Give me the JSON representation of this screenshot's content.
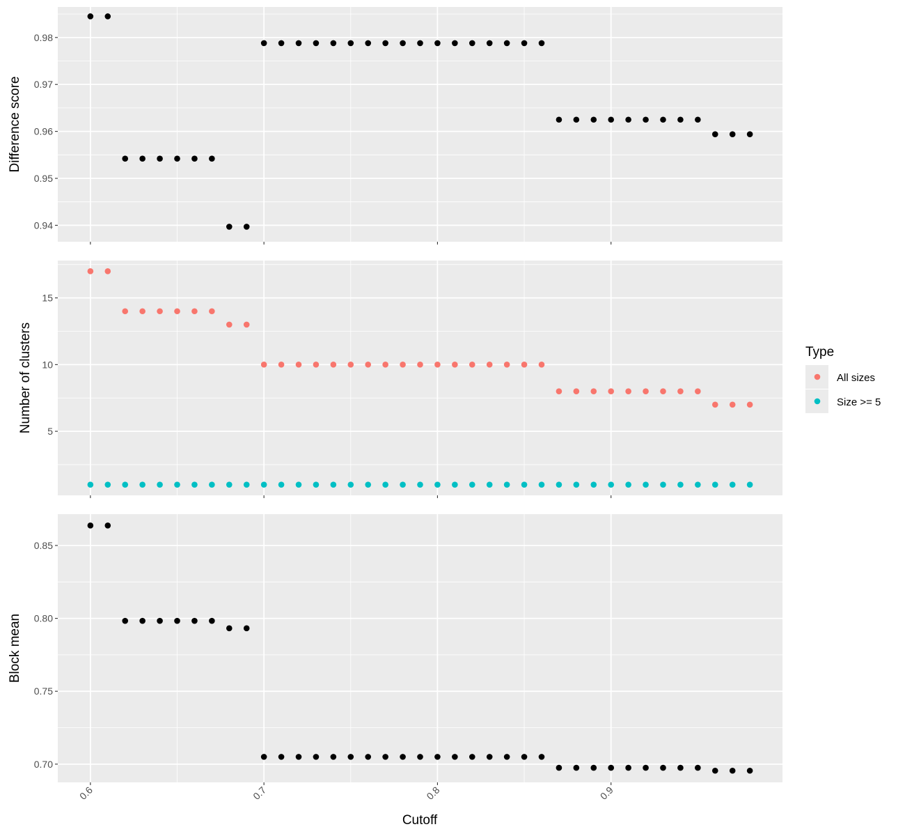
{
  "chart_data": [
    {
      "type": "scatter",
      "panel": "top",
      "ylabel": "Difference score",
      "xlim": [
        0.5812,
        0.9988
      ],
      "ylim": [
        0.9365,
        0.9865
      ],
      "grid": true,
      "x_ticks": [
        0.6,
        0.7,
        0.8,
        0.9
      ],
      "y_ticks": [
        0.94,
        0.95,
        0.96,
        0.97,
        0.98
      ],
      "y_tick_labels": [
        "0.94",
        "0.95",
        "0.96",
        "0.97",
        "0.98"
      ],
      "color": "#000000",
      "x": [
        0.6,
        0.61,
        0.62,
        0.63,
        0.64,
        0.65,
        0.66,
        0.67,
        0.68,
        0.69,
        0.7,
        0.71,
        0.72,
        0.73,
        0.74,
        0.75,
        0.76,
        0.77,
        0.78,
        0.79,
        0.8,
        0.81,
        0.82,
        0.83,
        0.84,
        0.85,
        0.86,
        0.87,
        0.88,
        0.89,
        0.9,
        0.91,
        0.92,
        0.93,
        0.94,
        0.95,
        0.96,
        0.97,
        0.98
      ],
      "y": [
        0.9845,
        0.9845,
        0.9542,
        0.9542,
        0.9542,
        0.9542,
        0.9542,
        0.9542,
        0.9397,
        0.9397,
        0.9788,
        0.9788,
        0.9788,
        0.9788,
        0.9788,
        0.9788,
        0.9788,
        0.9788,
        0.9788,
        0.9788,
        0.9788,
        0.9788,
        0.9788,
        0.9788,
        0.9788,
        0.9788,
        0.9788,
        0.9625,
        0.9625,
        0.9625,
        0.9625,
        0.9625,
        0.9625,
        0.9625,
        0.9625,
        0.9625,
        0.9594,
        0.9594,
        0.9594
      ]
    },
    {
      "type": "scatter",
      "panel": "middle",
      "ylabel": "Number of clusters",
      "xlim": [
        0.5812,
        0.9988
      ],
      "ylim": [
        0.2,
        17.8
      ],
      "grid": true,
      "x_ticks": [
        0.6,
        0.7,
        0.8,
        0.9
      ],
      "y_ticks": [
        5,
        10,
        15
      ],
      "y_tick_labels": [
        "5",
        "10",
        "15"
      ],
      "x": [
        0.6,
        0.61,
        0.62,
        0.63,
        0.64,
        0.65,
        0.66,
        0.67,
        0.68,
        0.69,
        0.7,
        0.71,
        0.72,
        0.73,
        0.74,
        0.75,
        0.76,
        0.77,
        0.78,
        0.79,
        0.8,
        0.81,
        0.82,
        0.83,
        0.84,
        0.85,
        0.86,
        0.87,
        0.88,
        0.89,
        0.9,
        0.91,
        0.92,
        0.93,
        0.94,
        0.95,
        0.96,
        0.97,
        0.98
      ],
      "series": [
        {
          "name": "All sizes",
          "color": "#F8766D",
          "values": [
            17,
            17,
            14,
            14,
            14,
            14,
            14,
            14,
            13,
            13,
            10,
            10,
            10,
            10,
            10,
            10,
            10,
            10,
            10,
            10,
            10,
            10,
            10,
            10,
            10,
            10,
            10,
            8,
            8,
            8,
            8,
            8,
            8,
            8,
            8,
            8,
            7,
            7,
            7
          ]
        },
        {
          "name": "Size >= 5",
          "color": "#00BFC4",
          "values": [
            1,
            1,
            1,
            1,
            1,
            1,
            1,
            1,
            1,
            1,
            1,
            1,
            1,
            1,
            1,
            1,
            1,
            1,
            1,
            1,
            1,
            1,
            1,
            1,
            1,
            1,
            1,
            1,
            1,
            1,
            1,
            1,
            1,
            1,
            1,
            1,
            1,
            1,
            1
          ]
        }
      ]
    },
    {
      "type": "scatter",
      "panel": "bottom",
      "ylabel": "Block mean",
      "xlabel": "Cutoff",
      "xlim": [
        0.5812,
        0.9988
      ],
      "ylim": [
        0.6875,
        0.8715
      ],
      "grid": true,
      "x_ticks": [
        0.6,
        0.7,
        0.8,
        0.9
      ],
      "x_tick_labels": [
        "0.6",
        "0.7",
        "0.8",
        "0.9"
      ],
      "y_ticks": [
        0.7,
        0.75,
        0.8,
        0.85
      ],
      "y_tick_labels": [
        "0.70",
        "0.75",
        "0.80",
        "0.85"
      ],
      "color": "#000000",
      "x": [
        0.6,
        0.61,
        0.62,
        0.63,
        0.64,
        0.65,
        0.66,
        0.67,
        0.68,
        0.69,
        0.7,
        0.71,
        0.72,
        0.73,
        0.74,
        0.75,
        0.76,
        0.77,
        0.78,
        0.79,
        0.8,
        0.81,
        0.82,
        0.83,
        0.84,
        0.85,
        0.86,
        0.87,
        0.88,
        0.89,
        0.9,
        0.91,
        0.92,
        0.93,
        0.94,
        0.95,
        0.96,
        0.97,
        0.98
      ],
      "y": [
        0.8637,
        0.8637,
        0.7983,
        0.7983,
        0.7983,
        0.7983,
        0.7983,
        0.7983,
        0.7932,
        0.7932,
        0.705,
        0.705,
        0.705,
        0.705,
        0.705,
        0.705,
        0.705,
        0.705,
        0.705,
        0.705,
        0.705,
        0.705,
        0.705,
        0.705,
        0.705,
        0.705,
        0.705,
        0.6975,
        0.6975,
        0.6975,
        0.6975,
        0.6975,
        0.6975,
        0.6975,
        0.6975,
        0.6975,
        0.6955,
        0.6955,
        0.6955
      ]
    }
  ],
  "legend": {
    "title": "Type",
    "items": [
      {
        "label": "All sizes",
        "color": "#F8766D"
      },
      {
        "label": "Size >= 5",
        "color": "#00BFC4"
      }
    ]
  }
}
